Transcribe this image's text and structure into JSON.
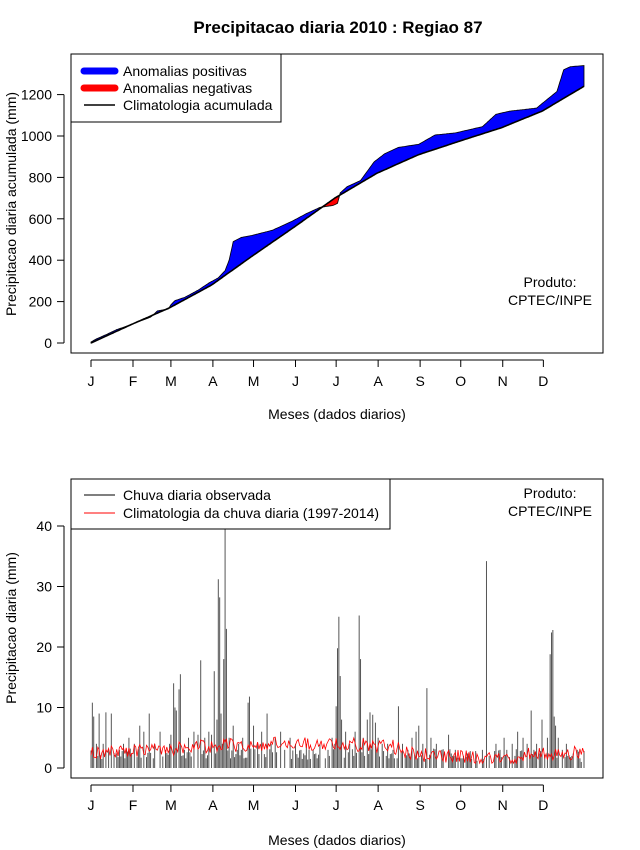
{
  "page": {
    "title": "Precipitacao diaria 2010 : Regiao 87"
  },
  "chart_data": [
    {
      "type": "area",
      "name": "accumulated",
      "xlabel": "Meses (dados diarios)",
      "ylabel": "Precipitacao diaria acumulada (mm)",
      "xlim": [
        1,
        365
      ],
      "ylim": [
        0,
        1340
      ],
      "yticks": [
        "0",
        "200",
        "400",
        "600",
        "800",
        "1000",
        "1200"
      ],
      "months": [
        "J",
        "F",
        "M",
        "A",
        "M",
        "J",
        "J",
        "A",
        "S",
        "O",
        "N",
        "D"
      ],
      "month_days": [
        1,
        32,
        60,
        91,
        121,
        152,
        182,
        213,
        244,
        274,
        305,
        335
      ],
      "legend": {
        "positive": "Anomalias positivas",
        "negative": "Anomalias negativas",
        "climatology": "Climatologia acumulada"
      },
      "colors": {
        "positive": "#0000ff",
        "negative": "#ff0000",
        "climatology": "#000000"
      },
      "product": [
        "Produto:",
        "CPTEC/INPE"
      ],
      "climatology_points": [
        [
          1,
          0
        ],
        [
          31,
          90
        ],
        [
          59,
          170
        ],
        [
          90,
          280
        ],
        [
          120,
          420
        ],
        [
          151,
          560
        ],
        [
          181,
          700
        ],
        [
          212,
          820
        ],
        [
          243,
          910
        ],
        [
          273,
          975
        ],
        [
          304,
          1040
        ],
        [
          334,
          1120
        ],
        [
          365,
          1240
        ]
      ],
      "observed_points": [
        [
          1,
          5
        ],
        [
          5,
          20
        ],
        [
          12,
          40
        ],
        [
          20,
          65
        ],
        [
          31,
          90
        ],
        [
          45,
          125
        ],
        [
          50,
          155
        ],
        [
          58,
          165
        ],
        [
          60,
          185
        ],
        [
          63,
          205
        ],
        [
          70,
          220
        ],
        [
          80,
          255
        ],
        [
          88,
          290
        ],
        [
          95,
          315
        ],
        [
          100,
          350
        ],
        [
          103,
          400
        ],
        [
          106,
          490
        ],
        [
          112,
          510
        ],
        [
          120,
          520
        ],
        [
          135,
          545
        ],
        [
          150,
          590
        ],
        [
          160,
          625
        ],
        [
          170,
          655
        ],
        [
          180,
          665
        ],
        [
          183,
          675
        ],
        [
          185,
          725
        ],
        [
          190,
          755
        ],
        [
          200,
          785
        ],
        [
          210,
          875
        ],
        [
          218,
          915
        ],
        [
          228,
          945
        ],
        [
          243,
          960
        ],
        [
          255,
          1005
        ],
        [
          270,
          1015
        ],
        [
          290,
          1045
        ],
        [
          300,
          1105
        ],
        [
          310,
          1120
        ],
        [
          330,
          1135
        ],
        [
          345,
          1215
        ],
        [
          350,
          1320
        ],
        [
          355,
          1335
        ],
        [
          365,
          1340
        ]
      ]
    },
    {
      "type": "bar",
      "name": "daily",
      "xlabel": "Meses (dados diarios)",
      "ylabel": "Precipitacao diaria (mm)",
      "xlim": [
        1,
        365
      ],
      "ylim": [
        0,
        48
      ],
      "yticks": [
        "0",
        "10",
        "20",
        "30",
        "40"
      ],
      "months": [
        "J",
        "F",
        "M",
        "A",
        "M",
        "J",
        "J",
        "A",
        "S",
        "O",
        "N",
        "D"
      ],
      "month_days": [
        1,
        32,
        60,
        91,
        121,
        152,
        182,
        213,
        244,
        274,
        305,
        335
      ],
      "legend": {
        "observed": "Chuva diaria observada",
        "climatology": "Climatologia da chuva diaria (1997-2014)"
      },
      "colors": {
        "observed": "#555555",
        "climatology": "#ff0000"
      },
      "product": [
        "Produto:",
        "CPTEC/INPE"
      ],
      "peaks": [
        [
          2,
          10.8
        ],
        [
          3,
          8.5
        ],
        [
          5,
          4
        ],
        [
          7,
          9
        ],
        [
          10,
          4
        ],
        [
          12,
          9.2
        ],
        [
          14,
          3
        ],
        [
          16,
          9
        ],
        [
          18,
          2.5
        ],
        [
          22,
          3
        ],
        [
          25,
          4
        ],
        [
          29,
          5
        ],
        [
          33,
          4
        ],
        [
          37,
          7
        ],
        [
          40,
          6
        ],
        [
          44,
          9
        ],
        [
          48,
          4
        ],
        [
          52,
          6
        ],
        [
          56,
          3
        ],
        [
          59,
          4
        ],
        [
          60,
          5.5
        ],
        [
          62,
          14
        ],
        [
          63,
          10
        ],
        [
          64,
          9.5
        ],
        [
          66,
          13
        ],
        [
          67,
          15.5
        ],
        [
          70,
          3
        ],
        [
          73,
          5
        ],
        [
          77,
          6
        ],
        [
          80,
          5.5
        ],
        [
          82,
          17.8
        ],
        [
          85,
          5
        ],
        [
          88,
          6
        ],
        [
          90,
          5.5
        ],
        [
          92,
          16
        ],
        [
          94,
          8
        ],
        [
          95,
          31.2
        ],
        [
          96,
          28.2
        ],
        [
          97,
          9
        ],
        [
          98,
          4
        ],
        [
          99,
          18
        ],
        [
          100,
          40
        ],
        [
          101,
          23
        ],
        [
          103,
          5
        ],
        [
          106,
          7
        ],
        [
          110,
          4
        ],
        [
          113,
          5
        ],
        [
          117,
          10.8
        ],
        [
          118,
          11.8
        ],
        [
          121,
          7
        ],
        [
          124,
          4
        ],
        [
          127,
          6
        ],
        [
          131,
          9
        ],
        [
          134,
          4
        ],
        [
          137,
          5
        ],
        [
          141,
          6
        ],
        [
          144,
          3
        ],
        [
          148,
          5
        ],
        [
          152,
          4
        ],
        [
          156,
          3
        ],
        [
          160,
          4
        ],
        [
          165,
          3
        ],
        [
          170,
          4
        ],
        [
          176,
          3
        ],
        [
          179,
          5
        ],
        [
          181,
          4
        ],
        [
          182,
          10.2
        ],
        [
          183,
          19.8
        ],
        [
          184,
          25
        ],
        [
          185,
          15.2
        ],
        [
          186,
          8
        ],
        [
          189,
          6
        ],
        [
          192,
          4
        ],
        [
          196,
          6
        ],
        [
          199,
          25.2
        ],
        [
          200,
          18
        ],
        [
          202,
          5
        ],
        [
          205,
          8
        ],
        [
          207,
          9.2
        ],
        [
          209,
          8.8
        ],
        [
          211,
          7.5
        ],
        [
          213,
          5
        ],
        [
          216,
          4
        ],
        [
          220,
          4
        ],
        [
          224,
          3
        ],
        [
          228,
          10.2
        ],
        [
          231,
          4
        ],
        [
          235,
          3
        ],
        [
          238,
          5
        ],
        [
          241,
          6
        ],
        [
          243,
          7
        ],
        [
          246,
          4
        ],
        [
          249,
          13.2
        ],
        [
          252,
          5
        ],
        [
          256,
          4
        ],
        [
          260,
          3
        ],
        [
          265,
          5.5
        ],
        [
          270,
          3
        ],
        [
          276,
          2
        ],
        [
          282,
          1.5
        ],
        [
          286,
          1.2
        ],
        [
          290,
          3
        ],
        [
          293,
          34.2
        ],
        [
          295,
          2
        ],
        [
          300,
          4
        ],
        [
          303,
          3
        ],
        [
          306,
          5
        ],
        [
          308,
          3
        ],
        [
          312,
          4
        ],
        [
          316,
          6
        ],
        [
          320,
          5
        ],
        [
          323,
          4
        ],
        [
          326,
          9.5
        ],
        [
          328,
          3
        ],
        [
          330,
          4
        ],
        [
          334,
          8
        ],
        [
          338,
          5
        ],
        [
          340,
          18.8
        ],
        [
          341,
          22.4
        ],
        [
          342,
          22.8
        ],
        [
          343,
          8.5
        ],
        [
          344,
          7
        ],
        [
          346,
          5
        ],
        [
          349,
          3
        ],
        [
          352,
          4
        ],
        [
          356,
          2
        ],
        [
          360,
          3
        ],
        [
          363,
          1
        ]
      ]
    }
  ]
}
